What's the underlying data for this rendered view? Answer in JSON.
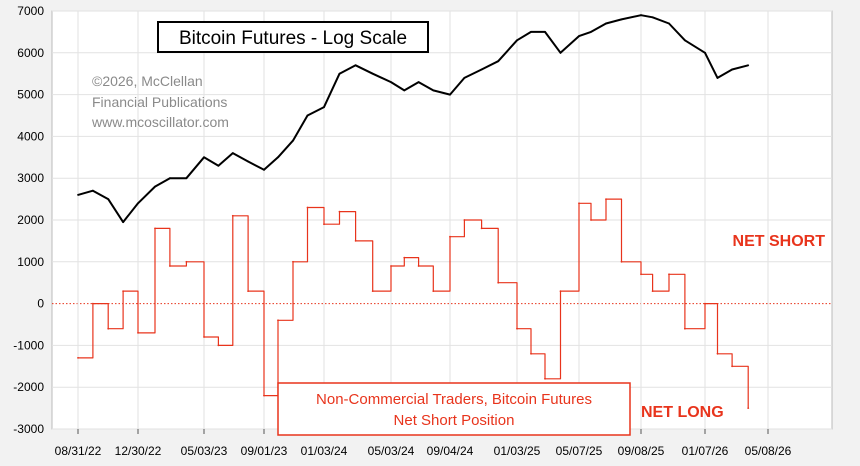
{
  "chart_data": {
    "type": "line",
    "title": "Bitcoin Futures - Log Scale",
    "credit_lines": [
      "©2026, McClellan",
      "Financial Publications",
      "www.mcoscillator.com"
    ],
    "x_tick_labels": [
      "08/31/22",
      "12/30/22",
      "05/03/23",
      "09/01/23",
      "01/03/24",
      "05/03/24",
      "09/04/24",
      "01/03/25",
      "05/07/25",
      "09/08/25",
      "01/07/26",
      "05/08/26"
    ],
    "y_tick_labels": [
      "7000",
      "6000",
      "5000",
      "4000",
      "3000",
      "2000",
      "1000",
      "0",
      "-1000",
      "-2000",
      "-3000"
    ],
    "ylim": [
      -3000,
      7000
    ],
    "grid": true,
    "series": [
      {
        "name": "",
        "color": "#000000",
        "x": [
          "08/31/22",
          "09/30/22",
          "10/31/22",
          "11/30/22",
          "12/30/22",
          "01/31/23",
          "02/28/23",
          "03/31/23",
          "05/03/23",
          "06/01/23",
          "06/30/23",
          "07/31/23",
          "09/01/23",
          "09/30/23",
          "10/31/23",
          "11/30/23",
          "01/03/24",
          "01/31/24",
          "02/29/24",
          "03/31/24",
          "05/03/24",
          "05/31/24",
          "06/30/24",
          "07/31/24",
          "09/04/24",
          "09/30/24",
          "10/31/24",
          "11/30/24",
          "01/03/25",
          "01/31/25",
          "02/28/25",
          "03/31/25",
          "05/07/25",
          "05/31/25",
          "06/30/25",
          "07/31/25",
          "09/08/25",
          "09/30/25",
          "10/31/25",
          "11/30/25",
          "01/07/26",
          "01/31/26",
          "02/28/26",
          "03/31/26"
        ],
        "values": [
          2600,
          2700,
          2500,
          1950,
          2400,
          2800,
          3000,
          3000,
          3500,
          3300,
          3600,
          3400,
          3200,
          3500,
          3900,
          4500,
          4700,
          5500,
          5700,
          5500,
          5300,
          5100,
          5300,
          5100,
          5000,
          5400,
          5600,
          5800,
          6300,
          6500,
          6500,
          6000,
          6400,
          6500,
          6700,
          6800,
          6900,
          6850,
          6700,
          6300,
          6000,
          5400,
          5600,
          5700
        ]
      },
      {
        "name": "",
        "color": "#e8341c",
        "x": [
          "08/31/22",
          "09/30/22",
          "10/31/22",
          "11/30/22",
          "12/30/22",
          "01/31/23",
          "02/28/23",
          "03/31/23",
          "05/03/23",
          "06/01/23",
          "06/30/23",
          "07/31/23",
          "09/01/23",
          "09/30/23",
          "10/31/23",
          "11/30/23",
          "01/03/24",
          "01/31/24",
          "02/29/24",
          "03/31/24",
          "05/03/24",
          "05/31/24",
          "06/30/24",
          "07/31/24",
          "09/04/24",
          "09/30/24",
          "10/31/24",
          "11/30/24",
          "01/03/25",
          "01/31/25",
          "02/28/25",
          "03/31/25",
          "05/07/25",
          "05/31/25",
          "06/30/25",
          "07/31/25",
          "09/08/25",
          "09/30/25",
          "10/31/25",
          "11/30/25",
          "01/07/26",
          "01/31/26",
          "02/28/26",
          "03/31/26"
        ],
        "values": [
          -1300,
          0,
          -600,
          300,
          -700,
          1800,
          900,
          1000,
          -800,
          -1000,
          2100,
          300,
          -2200,
          -400,
          1000,
          2300,
          1900,
          2200,
          1500,
          300,
          900,
          1100,
          900,
          300,
          1600,
          2000,
          1800,
          500,
          -600,
          -1200,
          -1800,
          300,
          2400,
          2000,
          2500,
          1000,
          700,
          300,
          700,
          -600,
          0,
          -1200,
          -1500,
          -2500
        ]
      }
    ],
    "annotations": {
      "net_short": "NET SHORT",
      "net_long": "NET LONG",
      "box_line1": "Non-Commercial Traders, Bitcoin Futures",
      "box_line2": "Net Short Position"
    }
  }
}
